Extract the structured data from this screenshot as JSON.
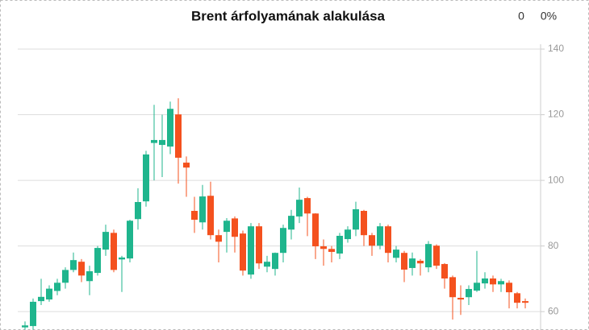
{
  "chart_data": {
    "type": "candlestick",
    "title": "Brent árfolyamának alakulása",
    "header_values": [
      "0",
      "0%"
    ],
    "up_color": "#1fb58d",
    "down_color": "#f4511e",
    "grid": true,
    "ylim": [
      54.4,
      140
    ],
    "yticks": [
      60,
      80,
      100,
      120,
      140
    ],
    "open": [
      55.2,
      55.6,
      63.2,
      63.7,
      66.3,
      68.8,
      72.7,
      75.2,
      69.3,
      71.8,
      78.9,
      84,
      75.9,
      76.2,
      88.2,
      93.6,
      111.4,
      110.8,
      110.3,
      120.1,
      105.4,
      90.7,
      87.2,
      95.3,
      83.3,
      84.3,
      88.4,
      83.8,
      71.3,
      86,
      73.7,
      73,
      77.9,
      85,
      89,
      94.6,
      89.9,
      79.9,
      79.1,
      77.7,
      82.1,
      85,
      90.7,
      83.3,
      80.1,
      86,
      76.4,
      77.9,
      73.3,
      75.5,
      73.5,
      80.1,
      74.5,
      70.5,
      64.2,
      64.4,
      66.4,
      68.6,
      70.1,
      68.3,
      68.8,
      65.6,
      63.2
    ],
    "high": [
      57,
      64,
      70,
      68,
      70,
      73.5,
      78,
      76,
      74,
      80,
      86.5,
      85,
      77,
      88,
      97.6,
      109,
      123,
      120,
      124,
      125,
      107.3,
      95,
      98.6,
      99.6,
      85,
      88.5,
      89,
      84.7,
      87,
      87,
      77,
      78,
      86.5,
      91,
      97.8,
      95,
      90,
      82,
      80,
      84,
      86,
      93.5,
      91,
      84,
      87,
      86.5,
      80,
      78.5,
      78,
      76,
      81.5,
      80.5,
      74.8,
      71,
      68,
      68,
      78.5,
      72,
      71,
      70,
      69.5,
      66,
      64
    ],
    "low": [
      54.5,
      54.5,
      62,
      63,
      65,
      67,
      72,
      69,
      65,
      71,
      77,
      72,
      66,
      75,
      85,
      92,
      100,
      101,
      108,
      99,
      95,
      84,
      85,
      82,
      75,
      78,
      78,
      71,
      70,
      73,
      72,
      71,
      75,
      82,
      87,
      83,
      76,
      74,
      75,
      76,
      81,
      83,
      80,
      77,
      79,
      75,
      75,
      69,
      71,
      71,
      72,
      73,
      67,
      57.6,
      59,
      62,
      66,
      67,
      66,
      66,
      61,
      61,
      61
    ],
    "close": [
      55.8,
      63,
      64.5,
      67,
      68.8,
      72.7,
      75.7,
      71,
      72.3,
      79.4,
      84.3,
      72.7,
      76.5,
      87.7,
      93.4,
      107.9,
      112.3,
      112.3,
      121.8,
      106.9,
      103.9,
      88,
      95.1,
      83.3,
      81.3,
      87.7,
      82.8,
      72.5,
      86,
      74.7,
      75.2,
      77.9,
      85.5,
      89.2,
      94.1,
      89.9,
      79.9,
      79.1,
      78.2,
      83.1,
      85,
      91.2,
      83.3,
      80.1,
      86,
      77.9,
      78.9,
      72.8,
      76.2,
      74.7,
      80.6,
      74,
      70.1,
      64.4,
      63.7,
      66.9,
      68.8,
      70.1,
      68.3,
      69.3,
      65.9,
      62.7,
      62.7
    ]
  }
}
